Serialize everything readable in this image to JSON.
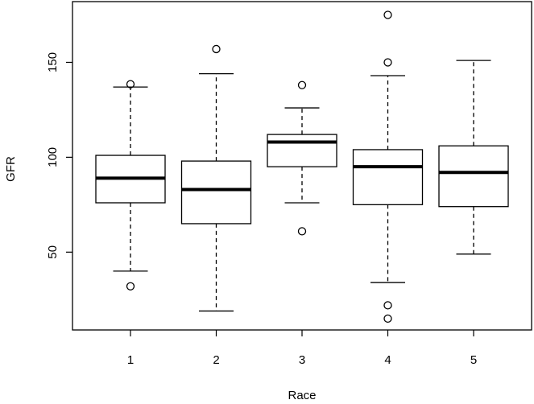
{
  "chart_data": {
    "type": "box",
    "x_label": "Race",
    "y_label": "GFR",
    "categories": [
      "1",
      "2",
      "3",
      "4",
      "5"
    ],
    "boxes": [
      {
        "whisker_low": 40,
        "q1": 76,
        "median": 89,
        "q3": 101,
        "whisker_high": 137,
        "outliers": [
          138.5,
          32
        ]
      },
      {
        "whisker_low": 19,
        "q1": 65,
        "median": 83,
        "q3": 98,
        "whisker_high": 144,
        "outliers": [
          157
        ]
      },
      {
        "whisker_low": 76,
        "q1": 95,
        "median": 108,
        "q3": 112,
        "whisker_high": 126,
        "outliers": [
          138,
          61
        ]
      },
      {
        "whisker_low": 34,
        "q1": 75,
        "median": 95,
        "q3": 104,
        "whisker_high": 143,
        "outliers": [
          175,
          150,
          22,
          15
        ]
      },
      {
        "whisker_low": 49,
        "q1": 74,
        "median": 92,
        "q3": 106,
        "whisker_high": 151,
        "outliers": []
      }
    ],
    "color": "#000000",
    "ylim": [
      9,
      182
    ],
    "yticks": [
      50,
      100,
      150
    ]
  }
}
